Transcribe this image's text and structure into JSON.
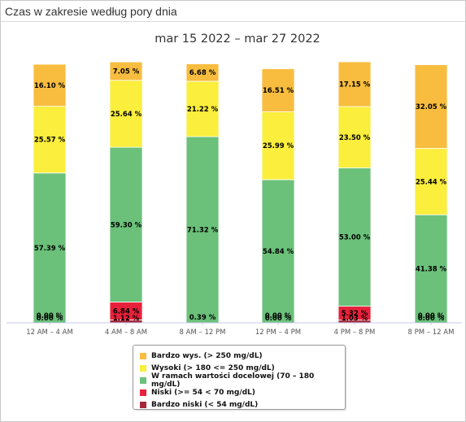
{
  "panel": {
    "title": "Czas w zakresie według pory dnia"
  },
  "chart_data": {
    "type": "bar",
    "stacked": true,
    "title": "mar 15 2022 – mar 27 2022",
    "xlabel": "",
    "ylabel": "",
    "ylim": [
      0,
      100
    ],
    "grid": false,
    "legend_position": "bottom",
    "categories": [
      "12 AM – 4 AM",
      "4 AM – 8 AM",
      "8 AM – 12 PM",
      "12 PM – 4 PM",
      "4 PM – 8 PM",
      "8 PM – 12 AM"
    ],
    "series": [
      {
        "name": "Bardzo niski (< 54 mg/dL)",
        "color": "#a5283a",
        "values": [
          0.0,
          1.12,
          0.0,
          0.0,
          1.03,
          0.0
        ],
        "labels": [
          "0.00 %",
          "1.12 %",
          "",
          "0.00 %",
          "1.03 %",
          "0.00 %"
        ]
      },
      {
        "name": "Niski (>= 54 < 70 mg/dL)",
        "color": "#e8213b",
        "values": [
          0.0,
          6.84,
          0.0,
          0.0,
          5.32,
          0.0
        ],
        "labels": [
          "0.00 %",
          "6.84 %",
          "",
          "0.00 %",
          "5.32 %",
          "0.00 %"
        ]
      },
      {
        "name": "W ramach wartości docelowej (70 – 180 mg/dL)",
        "color": "#6bc17a",
        "values": [
          57.39,
          59.3,
          71.32,
          54.84,
          53.0,
          41.38
        ],
        "labels": [
          "57.39 %",
          "59.30 %",
          "71.32 %",
          "54.84 %",
          "53.00 %",
          "41.38 %"
        ]
      },
      {
        "name": "Wysoki (> 180 <= 250 mg/dL)",
        "color": "#fbee3c",
        "values": [
          25.57,
          25.64,
          21.22,
          25.99,
          23.5,
          25.44
        ],
        "labels": [
          "25.57 %",
          "25.64 %",
          "21.22 %",
          "25.99 %",
          "23.50 %",
          "25.44 %"
        ]
      },
      {
        "name": "Bardzo wys. (> 250 mg/dL)",
        "color": "#f8bd3e",
        "values": [
          16.1,
          7.05,
          6.68,
          16.51,
          17.15,
          32.05
        ],
        "labels": [
          "16.10 %",
          "7.05 %",
          "6.68 %",
          "16.51 %",
          "17.15 %",
          "32.05 %"
        ]
      }
    ],
    "extra_labels": [
      {
        "category_index": 2,
        "text": "0.39 %"
      }
    ]
  },
  "legend": {
    "items": [
      {
        "label": "Bardzo wys. (> 250 mg/dL)",
        "color": "#f8bd3e"
      },
      {
        "label": "Wysoki (> 180 <= 250 mg/dL)",
        "color": "#fbee3c"
      },
      {
        "label": "W ramach wartości docelowej (70 – 180 mg/dL)",
        "color": "#6bc17a"
      },
      {
        "label": "Niski (>= 54 < 70 mg/dL)",
        "color": "#e8213b"
      },
      {
        "label": "Bardzo niski (< 54 mg/dL)",
        "color": "#a5283a"
      }
    ]
  }
}
